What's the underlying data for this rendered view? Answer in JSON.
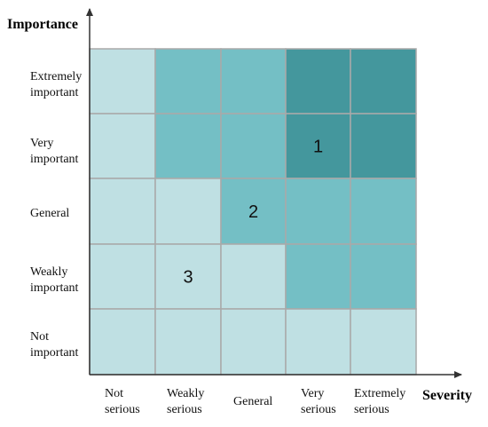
{
  "y_axis": {
    "title": "Importance",
    "levels": [
      [
        "Extremely",
        "important"
      ],
      [
        "Very",
        "important"
      ],
      [
        "General"
      ],
      [
        "Weakly",
        "important"
      ],
      [
        "Not",
        "important"
      ]
    ]
  },
  "x_axis": {
    "title": "Severity",
    "levels": [
      [
        "Not",
        "serious"
      ],
      [
        "Weakly",
        "serious"
      ],
      [
        "General"
      ],
      [
        "Very",
        "serious"
      ],
      [
        "Extremely",
        "serious"
      ]
    ]
  },
  "colors": {
    "light": "#bfe0e3",
    "medium": "#74bfc5",
    "dark": "#44979d",
    "cell_border": "#a9a9a9",
    "axis": "#333333"
  },
  "grid": [
    [
      "light",
      "medium",
      "medium",
      "dark",
      "dark"
    ],
    [
      "light",
      "medium",
      "medium",
      "dark",
      "dark"
    ],
    [
      "light",
      "light",
      "medium",
      "medium",
      "medium"
    ],
    [
      "light",
      "light",
      "light",
      "medium",
      "medium"
    ],
    [
      "light",
      "light",
      "light",
      "light",
      "light"
    ]
  ],
  "markers": [
    {
      "label": "1",
      "row": 1,
      "col": 3
    },
    {
      "label": "2",
      "row": 2,
      "col": 2
    },
    {
      "label": "3",
      "row": 3,
      "col": 1
    }
  ]
}
